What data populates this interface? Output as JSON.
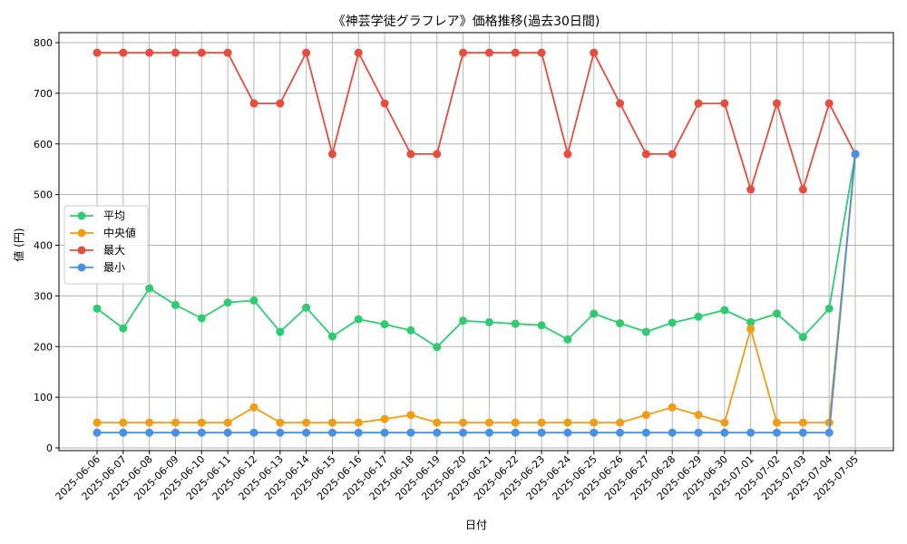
{
  "chart_data": {
    "type": "line",
    "title": "《神芸学徒グラフレア》価格推移(過去30日間)",
    "xlabel": "日付",
    "ylabel": "値 (円)",
    "ylim": [
      0,
      800
    ],
    "yticks": [
      0,
      100,
      200,
      300,
      400,
      500,
      600,
      700,
      800
    ],
    "grid": true,
    "legend_position": "center-left",
    "categories": [
      "2025-06-06",
      "2025-06-07",
      "2025-06-08",
      "2025-06-09",
      "2025-06-10",
      "2025-06-11",
      "2025-06-12",
      "2025-06-13",
      "2025-06-14",
      "2025-06-15",
      "2025-06-16",
      "2025-06-17",
      "2025-06-18",
      "2025-06-19",
      "2025-06-20",
      "2025-06-21",
      "2025-06-22",
      "2025-06-23",
      "2025-06-24",
      "2025-06-25",
      "2025-06-26",
      "2025-06-27",
      "2025-06-28",
      "2025-06-29",
      "2025-06-30",
      "2025-07-01",
      "2025-07-02",
      "2025-07-03",
      "2025-07-04",
      "2025-07-05"
    ],
    "series": [
      {
        "name": "平均",
        "color": "#2ecc71",
        "values": [
          275,
          236,
          315,
          282,
          256,
          287,
          291,
          229,
          277,
          220,
          254,
          244,
          232,
          199,
          251,
          248,
          245,
          242,
          214,
          265,
          246,
          229,
          247,
          259,
          272,
          248,
          265,
          219,
          275,
          580
        ]
      },
      {
        "name": "中央値",
        "color": "#f39c12",
        "values": [
          50,
          50,
          50,
          50,
          50,
          50,
          80,
          50,
          50,
          50,
          50,
          57,
          65,
          50,
          50,
          50,
          50,
          50,
          50,
          50,
          50,
          65,
          80,
          65,
          50,
          235,
          50,
          50,
          50,
          580
        ]
      },
      {
        "name": "最大",
        "color": "#e74c3c",
        "values": [
          780,
          780,
          780,
          780,
          780,
          780,
          680,
          680,
          780,
          580,
          780,
          680,
          580,
          580,
          780,
          780,
          780,
          780,
          580,
          780,
          680,
          580,
          580,
          680,
          680,
          510,
          680,
          510,
          680,
          580
        ]
      },
      {
        "name": "最小",
        "color": "#4a90e2",
        "values": [
          30,
          30,
          30,
          30,
          30,
          30,
          30,
          30,
          30,
          30,
          30,
          30,
          30,
          30,
          30,
          30,
          30,
          30,
          30,
          30,
          30,
          30,
          30,
          30,
          30,
          30,
          30,
          30,
          30,
          580
        ]
      }
    ]
  }
}
